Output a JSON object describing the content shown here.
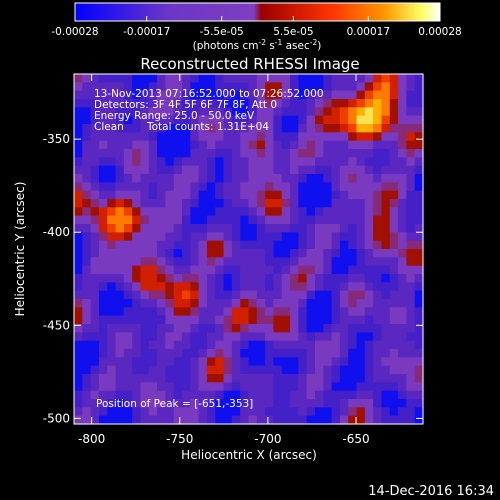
{
  "chart_data": {
    "type": "heatmap",
    "title": "Reconstructed RHESSI Image",
    "xlabel": "Heliocentric X (arcsec)",
    "ylabel": "Heliocentric Y (arcsec)",
    "xlim": [
      -810,
      -612
    ],
    "ylim": [
      -503,
      -315
    ],
    "x_ticks": [
      "-800",
      "-750",
      "-700",
      "-650"
    ],
    "x_tick_values": [
      -800,
      -750,
      -700,
      -650
    ],
    "y_ticks": [
      "-500",
      "-450",
      "-400",
      "-350"
    ],
    "y_tick_values": [
      -500,
      -450,
      -400,
      -350
    ],
    "colorbar": {
      "ticks": [
        "-0.00028",
        "-0.00017",
        "-5.5e-05",
        "5.5e-05",
        "0.00017",
        "0.00028"
      ],
      "tick_values": [
        -0.00028,
        -0.00017,
        -5.5e-05,
        5.5e-05,
        0.00017,
        0.00028
      ],
      "range": [
        -0.00028,
        0.00028
      ],
      "unit_label_parts": [
        "(photons cm",
        "-2",
        " s",
        "-1",
        " asec",
        "-2",
        ")"
      ]
    },
    "annotations": {
      "time_range": "13-Nov-2013 07:16:52.000 to 07:26:52.000",
      "detectors": "Detectors: 3F 4F 5F 6F 7F 8F, Att 0",
      "energy_range": "Energy Range: 25.0 - 50.0 keV",
      "method": "Clean",
      "total_counts": "Total counts: 1.31E+04",
      "peak": "Position of Peak = [-651,-353]"
    },
    "peak_position": [
      -651,
      -353
    ],
    "grid": false,
    "colormap": [
      "#0000ff",
      "#6633cc",
      "#7a40c0",
      "#991a00",
      "#ff3300",
      "#ff9900",
      "#ffff80",
      "#ffffff"
    ]
  },
  "footer": {
    "date": "14-Dec-2016 16:34"
  }
}
